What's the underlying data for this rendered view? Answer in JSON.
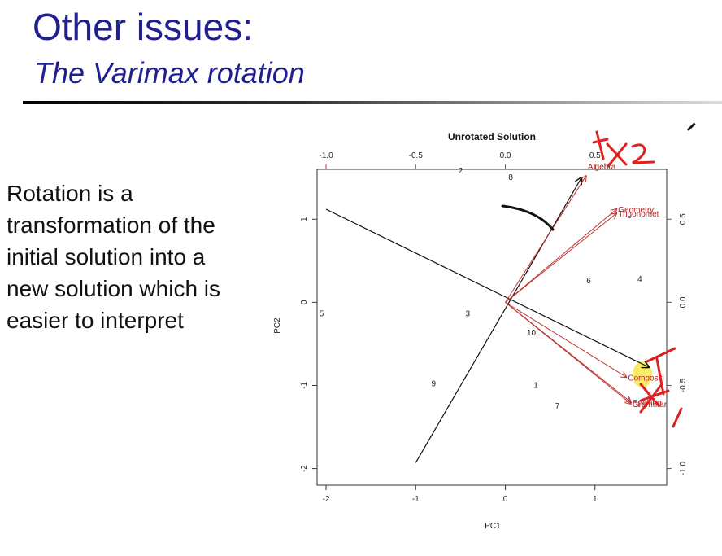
{
  "slide": {
    "title": "Other issues:",
    "subtitle": "The Varimax rotation",
    "body": "Rotation is a transformation of the initial solution into a new solution which is easier to interpret"
  },
  "icons": {
    "pen": "pen-icon"
  },
  "colors": {
    "title": "#1f1f8f",
    "arrows": "#c03030",
    "annotation": "#e02020",
    "highlight": "#f5ea4a"
  },
  "chart_data": {
    "type": "scatter",
    "title": "Unrotated Solution",
    "xlabel": "PC1",
    "ylabel": "PC2",
    "xlim": [
      -2.1,
      1.8
    ],
    "ylim": [
      -2.2,
      1.6
    ],
    "x_ticks": [
      "-2",
      "-1",
      "0",
      "1"
    ],
    "y_ticks": [
      "-2",
      "-1",
      "0",
      "1"
    ],
    "top_ticks": [
      "-1.0",
      "-0.5",
      "0.0",
      "0.5"
    ],
    "right_ticks": [
      "-1.0",
      "-0.5",
      "0.0",
      "0.5"
    ],
    "grid": false,
    "observations": [
      {
        "label": "1",
        "x": 0.34,
        "y": -1.0
      },
      {
        "label": "2",
        "x": -0.5,
        "y": 1.58
      },
      {
        "label": "3",
        "x": -0.42,
        "y": -0.14
      },
      {
        "label": "4",
        "x": 1.5,
        "y": 0.28
      },
      {
        "label": "5",
        "x": -2.05,
        "y": -0.14
      },
      {
        "label": "6",
        "x": 0.93,
        "y": 0.26
      },
      {
        "label": "7",
        "x": 0.58,
        "y": -1.25
      },
      {
        "label": "8",
        "x": 0.06,
        "y": 1.5
      },
      {
        "label": "9",
        "x": -0.8,
        "y": -0.98
      },
      {
        "label": "10",
        "x": 0.29,
        "y": -0.37
      }
    ],
    "variables": [
      {
        "label": "Algebra",
        "x": 0.9,
        "y": 1.52
      },
      {
        "label": "Geometry",
        "x": 1.24,
        "y": 1.12
      },
      {
        "label": "Trigonomet",
        "x": 1.24,
        "y": 1.07
      },
      {
        "label": "Compositi",
        "x": 1.35,
        "y": -0.9
      },
      {
        "label": "Grammar",
        "x": 1.4,
        "y": -1.22
      },
      {
        "label": "Spelling",
        "x": 1.4,
        "y": -1.2
      }
    ],
    "rotated_axes": [
      {
        "from": [
          -2.0,
          1.12
        ],
        "to": [
          1.6,
          -0.78
        ]
      },
      {
        "from": [
          -1.0,
          -1.93
        ],
        "to": [
          0.85,
          1.5
        ]
      }
    ]
  }
}
